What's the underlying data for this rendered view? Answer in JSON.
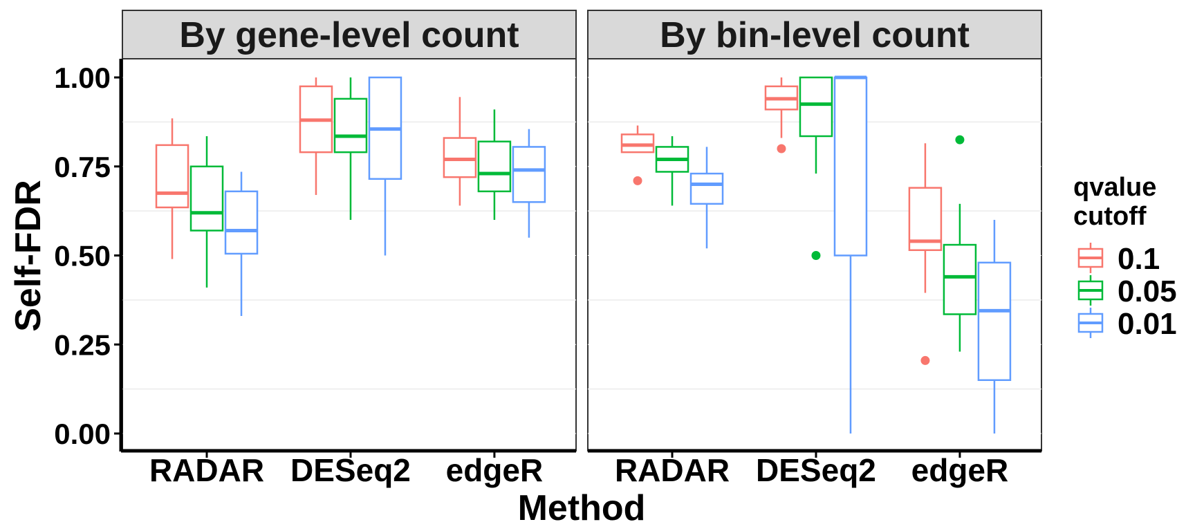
{
  "chart_data": {
    "type": "boxplot",
    "xlabel": "Method",
    "ylabel": "Self-FDR",
    "ylim": [
      0,
      1.05
    ],
    "y_ticks": [
      "0.00",
      "0.25",
      "0.50",
      "0.75",
      "1.00"
    ],
    "categories": [
      "RADAR",
      "DESeq2",
      "edgeR"
    ],
    "legend": {
      "title_lines": [
        "qvalue",
        "cutoff"
      ],
      "position": "right",
      "entries": [
        {
          "label": "0.1",
          "color": "#F8766D"
        },
        {
          "label": "0.05",
          "color": "#00BA38"
        },
        {
          "label": "0.01",
          "color": "#619CFF"
        }
      ]
    },
    "panels": [
      {
        "title": "By gene-level count",
        "groups": [
          {
            "category": "RADAR",
            "boxes": [
              {
                "cutoff": "0.1",
                "min": 0.49,
                "q1": 0.635,
                "median": 0.675,
                "q3": 0.81,
                "max": 0.885,
                "outliers": []
              },
              {
                "cutoff": "0.05",
                "min": 0.41,
                "q1": 0.57,
                "median": 0.62,
                "q3": 0.75,
                "max": 0.835,
                "outliers": []
              },
              {
                "cutoff": "0.01",
                "min": 0.33,
                "q1": 0.505,
                "median": 0.57,
                "q3": 0.68,
                "max": 0.735,
                "outliers": []
              }
            ]
          },
          {
            "category": "DESeq2",
            "boxes": [
              {
                "cutoff": "0.1",
                "min": 0.67,
                "q1": 0.79,
                "median": 0.88,
                "q3": 0.975,
                "max": 1.0,
                "outliers": []
              },
              {
                "cutoff": "0.05",
                "min": 0.6,
                "q1": 0.79,
                "median": 0.835,
                "q3": 0.94,
                "max": 1.0,
                "outliers": []
              },
              {
                "cutoff": "0.01",
                "min": 0.5,
                "q1": 0.715,
                "median": 0.855,
                "q3": 1.0,
                "max": 1.0,
                "outliers": []
              }
            ]
          },
          {
            "category": "edgeR",
            "boxes": [
              {
                "cutoff": "0.1",
                "min": 0.64,
                "q1": 0.72,
                "median": 0.77,
                "q3": 0.83,
                "max": 0.945,
                "outliers": []
              },
              {
                "cutoff": "0.05",
                "min": 0.6,
                "q1": 0.68,
                "median": 0.73,
                "q3": 0.82,
                "max": 0.91,
                "outliers": []
              },
              {
                "cutoff": "0.01",
                "min": 0.55,
                "q1": 0.65,
                "median": 0.74,
                "q3": 0.805,
                "max": 0.855,
                "outliers": []
              }
            ]
          }
        ]
      },
      {
        "title": "By bin-level count",
        "groups": [
          {
            "category": "RADAR",
            "boxes": [
              {
                "cutoff": "0.1",
                "min": 0.79,
                "q1": 0.79,
                "median": 0.81,
                "q3": 0.84,
                "max": 0.865,
                "outliers": [
                  0.71
                ]
              },
              {
                "cutoff": "0.05",
                "min": 0.64,
                "q1": 0.735,
                "median": 0.77,
                "q3": 0.805,
                "max": 0.835,
                "outliers": []
              },
              {
                "cutoff": "0.01",
                "min": 0.52,
                "q1": 0.645,
                "median": 0.7,
                "q3": 0.73,
                "max": 0.805,
                "outliers": []
              }
            ]
          },
          {
            "category": "DESeq2",
            "boxes": [
              {
                "cutoff": "0.1",
                "min": 0.83,
                "q1": 0.91,
                "median": 0.94,
                "q3": 0.975,
                "max": 1.0,
                "outliers": [
                  0.8
                ]
              },
              {
                "cutoff": "0.05",
                "min": 0.73,
                "q1": 0.835,
                "median": 0.925,
                "q3": 1.0,
                "max": 1.0,
                "outliers": [
                  0.5
                ]
              },
              {
                "cutoff": "0.01",
                "min": 0.0,
                "q1": 0.5,
                "median": 1.0,
                "q3": 1.0,
                "max": 1.0,
                "outliers": []
              }
            ]
          },
          {
            "category": "edgeR",
            "boxes": [
              {
                "cutoff": "0.1",
                "min": 0.395,
                "q1": 0.515,
                "median": 0.54,
                "q3": 0.69,
                "max": 0.815,
                "outliers": [
                  0.205
                ]
              },
              {
                "cutoff": "0.05",
                "min": 0.23,
                "q1": 0.335,
                "median": 0.44,
                "q3": 0.53,
                "max": 0.645,
                "outliers": [
                  0.825
                ]
              },
              {
                "cutoff": "0.01",
                "min": 0.0,
                "q1": 0.15,
                "median": 0.345,
                "q3": 0.48,
                "max": 0.6,
                "outliers": []
              }
            ]
          }
        ]
      }
    ]
  }
}
